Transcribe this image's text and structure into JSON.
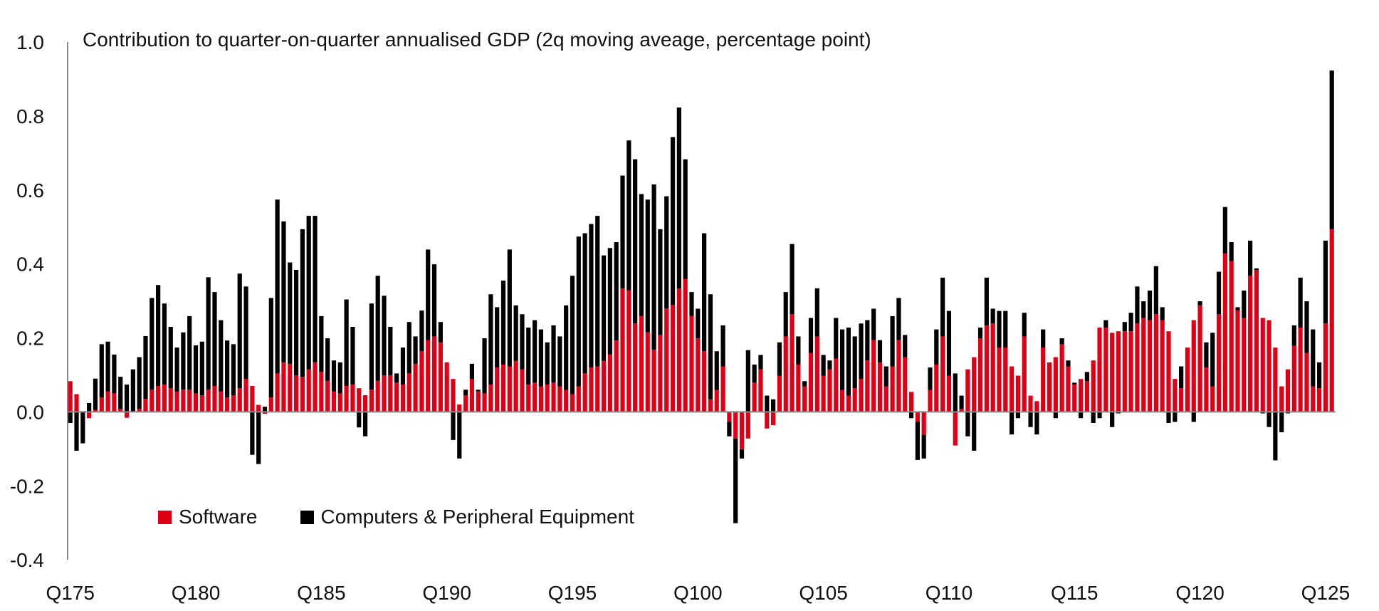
{
  "chart_data": {
    "type": "bar",
    "stacked": true,
    "title": "Contribution to quarter-on-quarter annualised GDP (2q moving aveage, percentage point)",
    "xlabel": "",
    "ylabel": "",
    "ylim": [
      -0.4,
      1.0
    ],
    "y_ticks": [
      "1.0",
      "0.8",
      "0.6",
      "0.4",
      "0.2",
      "0.0",
      "-0.2",
      "-0.4"
    ],
    "x_tick_labels": [
      "Q175",
      "Q180",
      "Q185",
      "Q190",
      "Q195",
      "Q100",
      "Q105",
      "Q110",
      "Q115",
      "Q120",
      "Q125"
    ],
    "grid": false,
    "legend_position": "bottom-left",
    "categories": [
      "Q175",
      "Q275",
      "Q375",
      "Q475",
      "Q176",
      "Q276",
      "Q376",
      "Q476",
      "Q177",
      "Q277",
      "Q377",
      "Q477",
      "Q178",
      "Q278",
      "Q378",
      "Q478",
      "Q179",
      "Q279",
      "Q379",
      "Q479",
      "Q180",
      "Q280",
      "Q380",
      "Q480",
      "Q181",
      "Q281",
      "Q381",
      "Q481",
      "Q182",
      "Q282",
      "Q382",
      "Q482",
      "Q183",
      "Q283",
      "Q383",
      "Q483",
      "Q184",
      "Q284",
      "Q384",
      "Q484",
      "Q185",
      "Q285",
      "Q385",
      "Q485",
      "Q186",
      "Q286",
      "Q386",
      "Q486",
      "Q187",
      "Q287",
      "Q387",
      "Q487",
      "Q188",
      "Q288",
      "Q388",
      "Q488",
      "Q189",
      "Q289",
      "Q389",
      "Q489",
      "Q190",
      "Q290",
      "Q390",
      "Q490",
      "Q191",
      "Q291",
      "Q391",
      "Q491",
      "Q192",
      "Q292",
      "Q392",
      "Q492",
      "Q193",
      "Q293",
      "Q393",
      "Q493",
      "Q194",
      "Q294",
      "Q394",
      "Q494",
      "Q195",
      "Q295",
      "Q395",
      "Q495",
      "Q196",
      "Q296",
      "Q396",
      "Q496",
      "Q197",
      "Q297",
      "Q397",
      "Q497",
      "Q198",
      "Q298",
      "Q398",
      "Q498",
      "Q199",
      "Q299",
      "Q399",
      "Q499",
      "Q100",
      "Q200",
      "Q300",
      "Q400",
      "Q101",
      "Q201",
      "Q301",
      "Q401",
      "Q102",
      "Q202",
      "Q302",
      "Q402",
      "Q103",
      "Q203",
      "Q303",
      "Q403",
      "Q104",
      "Q204",
      "Q304",
      "Q404",
      "Q105",
      "Q205",
      "Q305",
      "Q405",
      "Q106",
      "Q206",
      "Q306",
      "Q406",
      "Q107",
      "Q207",
      "Q307",
      "Q407",
      "Q108",
      "Q208",
      "Q308",
      "Q408",
      "Q109",
      "Q209",
      "Q309",
      "Q409",
      "Q110",
      "Q210",
      "Q310",
      "Q410",
      "Q111",
      "Q211",
      "Q311",
      "Q411",
      "Q112",
      "Q212",
      "Q312",
      "Q412",
      "Q113",
      "Q213",
      "Q313",
      "Q413",
      "Q114",
      "Q214",
      "Q314",
      "Q414",
      "Q115",
      "Q215",
      "Q315",
      "Q415",
      "Q116",
      "Q216",
      "Q316",
      "Q416",
      "Q117",
      "Q217",
      "Q317",
      "Q417",
      "Q118",
      "Q218",
      "Q318",
      "Q418",
      "Q119",
      "Q219",
      "Q319",
      "Q419",
      "Q120",
      "Q220",
      "Q320",
      "Q420",
      "Q121",
      "Q221",
      "Q321",
      "Q421",
      "Q122",
      "Q222",
      "Q322",
      "Q422",
      "Q123",
      "Q223",
      "Q323",
      "Q423",
      "Q124",
      "Q224",
      "Q324",
      "Q424",
      "Q125",
      "Q225"
    ],
    "series": [
      {
        "name": "Software",
        "color": "#e00016",
        "values": [
          0.083,
          0.048,
          0.002,
          -0.017,
          0.005,
          0.039,
          0.055,
          0.05,
          0.008,
          -0.016,
          0,
          0.008,
          0.035,
          0.06,
          0.07,
          0.074,
          0.064,
          0.055,
          0.06,
          0.06,
          0.05,
          0.045,
          0.06,
          0.07,
          0.055,
          0.039,
          0.045,
          0.064,
          0.089,
          0.07,
          0.019,
          -0.005,
          0.039,
          0.104,
          0.134,
          0.13,
          0.099,
          0.095,
          0.115,
          0.134,
          0.108,
          0.084,
          0.055,
          0.05,
          0.07,
          0.074,
          0.064,
          0.045,
          0.06,
          0.084,
          0.099,
          0.099,
          0.079,
          0.074,
          0.104,
          0.13,
          0.164,
          0.194,
          0.204,
          0.188,
          0.134,
          0.089,
          0.02,
          0.045,
          0.089,
          0.055,
          0.05,
          0.074,
          0.12,
          0.128,
          0.123,
          0.138,
          0.115,
          0.074,
          0.079,
          0.069,
          0.074,
          0.079,
          0.069,
          0.059,
          0.048,
          0.069,
          0.104,
          0.12,
          0.123,
          0.138,
          0.155,
          0.193,
          0.334,
          0.329,
          0.239,
          0.259,
          0.215,
          0.168,
          0.208,
          0.28,
          0.289,
          0.334,
          0.359,
          0.259,
          0.199,
          0.164,
          0.034,
          0.059,
          0.123,
          -0.027,
          -0.072,
          -0.101,
          -0.072,
          0.079,
          0.115,
          -0.045,
          -0.036,
          0.098,
          0.204,
          0.264,
          0.128,
          0.069,
          0.159,
          0.204,
          0.098,
          0.115,
          0.144,
          0.059,
          0.044,
          0.064,
          0.089,
          0.139,
          0.194,
          0.134,
          0.069,
          0.123,
          0.194,
          0.148,
          0.054,
          -0.027,
          -0.062,
          0.059,
          0.128,
          0.204,
          0.098,
          -0.091,
          0.008,
          0.115,
          0.148,
          0.199,
          0.234,
          0.239,
          0.174,
          0.174,
          0.123,
          0.098,
          0.204,
          0.044,
          0.029,
          0.174,
          0.134,
          0.148,
          0.183,
          0.123,
          0.074,
          0.089,
          0.083,
          0.139,
          0.228,
          0.228,
          0.214,
          0.218,
          0.218,
          0.218,
          0.239,
          0.254,
          0.248,
          0.264,
          0.248,
          0.218,
          0.089,
          0.064,
          0.174,
          0.248,
          0.288,
          0.12,
          0.069,
          0.264,
          0.428,
          0.408,
          0.274,
          0.254,
          0.368,
          0.384,
          0.254,
          0.248,
          0.174,
          0.069,
          0.115,
          0.179,
          0.228,
          0.159,
          0.069,
          0.064,
          0.239,
          0.494
        ]
      },
      {
        "name": "Computers & Peripheral Equipment",
        "color": "#000000",
        "values": [
          -0.03,
          -0.105,
          -0.085,
          0.024,
          0.085,
          0.144,
          0.135,
          0.105,
          0.087,
          0.074,
          0.115,
          0.14,
          0.17,
          0.248,
          0.273,
          0.219,
          0.166,
          0.119,
          0.155,
          0.199,
          0.13,
          0.145,
          0.304,
          0.254,
          0.193,
          0.154,
          0.138,
          0.31,
          0.25,
          -0.116,
          -0.141,
          0.014,
          0.269,
          0.47,
          0.381,
          0.274,
          0.285,
          0.399,
          0.415,
          0.396,
          0.151,
          0.115,
          0.084,
          0.084,
          0.234,
          0.156,
          -0.042,
          -0.066,
          0.233,
          0.284,
          0.215,
          0.131,
          0.025,
          0.1,
          0.139,
          0.074,
          0.11,
          0.245,
          0.195,
          0.055,
          0,
          -0.076,
          -0.126,
          0.015,
          0.041,
          0.005,
          0.149,
          0.244,
          0.163,
          0.227,
          0.316,
          0.15,
          0.149,
          0.154,
          0.169,
          0.154,
          0.114,
          0.155,
          0.135,
          0.229,
          0.32,
          0.405,
          0.379,
          0.388,
          0.407,
          0.285,
          0.288,
          0.266,
          0.305,
          0.405,
          0.444,
          0.33,
          0.359,
          0.447,
          0.286,
          0.303,
          0.454,
          0.489,
          0.324,
          0.065,
          0.08,
          0.319,
          0.284,
          0.105,
          0.111,
          -0.039,
          -0.229,
          -0.025,
          0.167,
          0.049,
          0.039,
          0.044,
          0.034,
          0.09,
          0.12,
          0.19,
          0.076,
          0.014,
          0.095,
          0.13,
          0.056,
          0.024,
          0.11,
          0.164,
          0.184,
          0.14,
          0.15,
          0.109,
          0.085,
          0.06,
          0.054,
          0.136,
          0.114,
          0.06,
          -0.017,
          -0.103,
          -0.064,
          0.061,
          0.095,
          0.159,
          0.175,
          0.104,
          0.036,
          -0.066,
          -0.105,
          0.029,
          0.129,
          0.04,
          0.099,
          0.099,
          -0.061,
          -0.017,
          0.064,
          -0.041,
          -0.061,
          0.049,
          0,
          -0.017,
          0.016,
          0.016,
          0.005,
          -0.017,
          0.025,
          -0.03,
          -0.017,
          0.02,
          -0.041,
          -0.004,
          0.025,
          0.05,
          0.1,
          0.045,
          0.08,
          0.13,
          0.035,
          -0.03,
          -0.027,
          0.059,
          0,
          -0.027,
          0.011,
          0.068,
          0.145,
          0.115,
          0.126,
          0.051,
          0.009,
          0.074,
          0.095,
          0.004,
          -0.004,
          -0.041,
          -0.131,
          -0.055,
          -0.004,
          0.055,
          0.135,
          0.14,
          0.154,
          0.07,
          0.224,
          0.429
        ]
      }
    ]
  }
}
